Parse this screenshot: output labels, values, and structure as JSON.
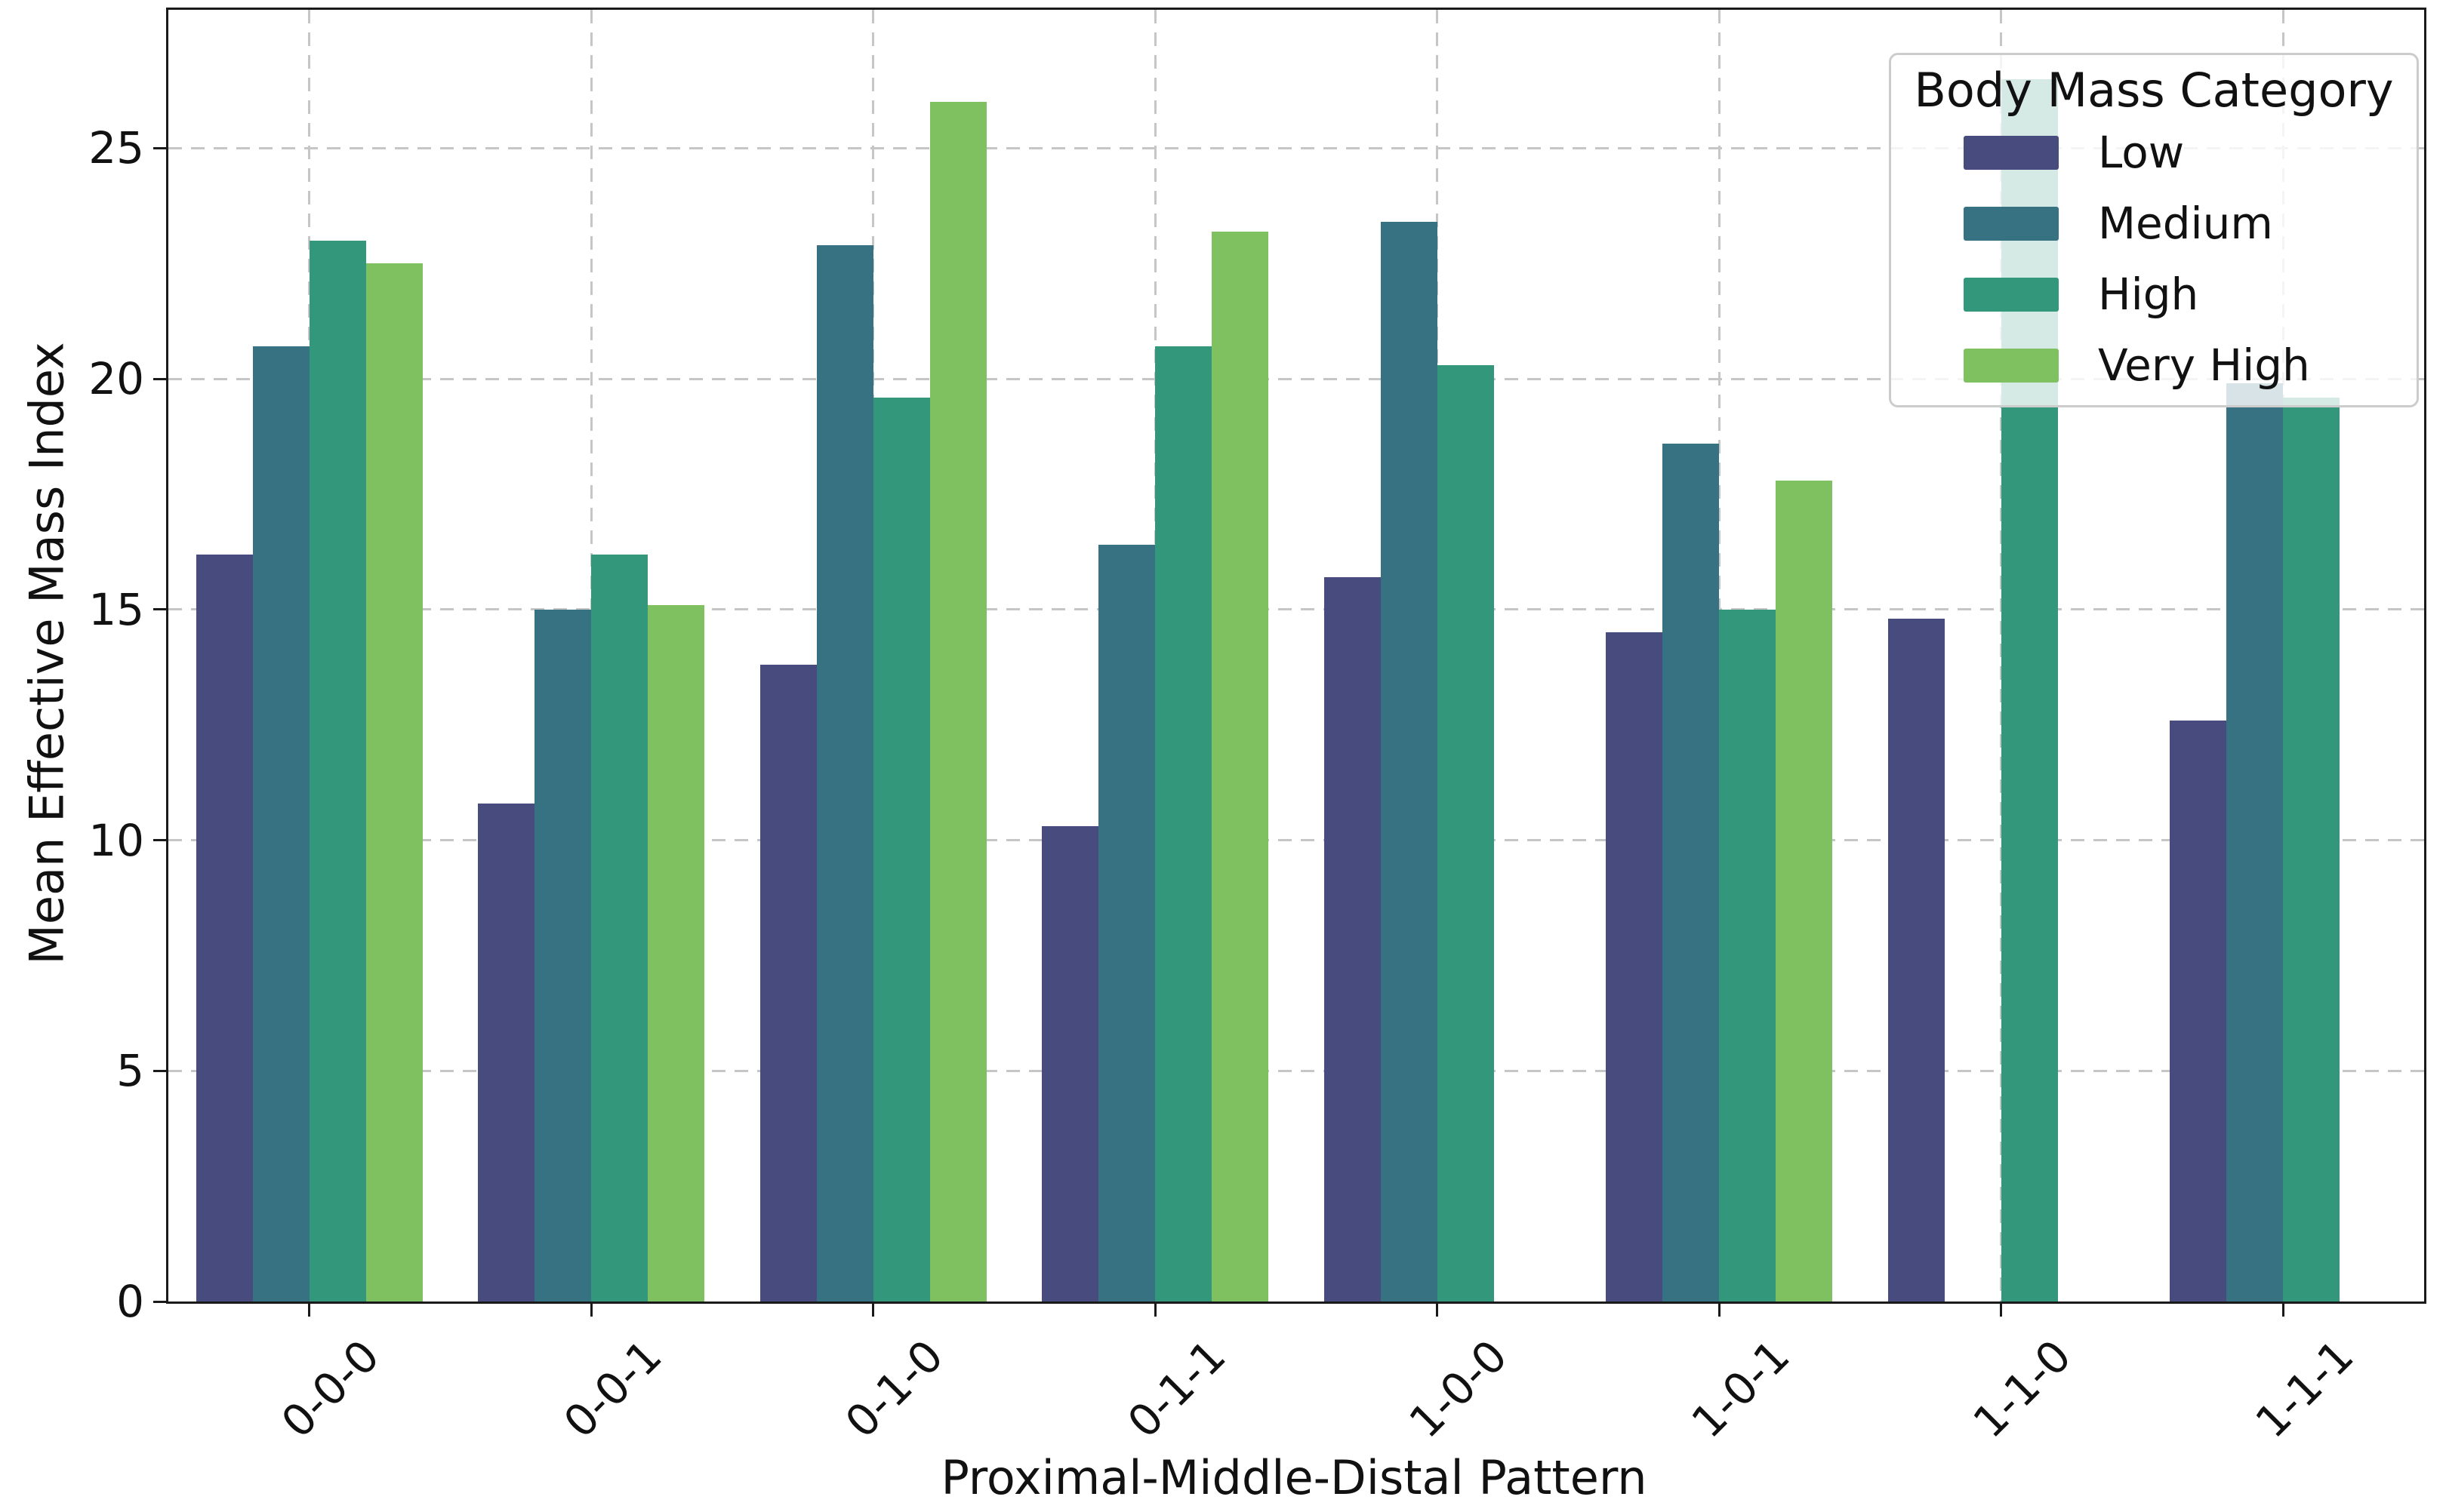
{
  "chart_data": {
    "type": "bar",
    "title": "",
    "xlabel": "Proximal-Middle-Distal Pattern",
    "ylabel": "Mean Effective Mass Index",
    "legend_title": "Body Mass Category",
    "legend_position": "upper right",
    "grid": "both, dashed",
    "background_color": "#ffffff",
    "grid_color": "#c6c6c6",
    "categories": [
      "0-0-0",
      "0-0-1",
      "0-1-0",
      "0-1-1",
      "1-0-0",
      "1-0-1",
      "1-1-0",
      "1-1-1"
    ],
    "series": [
      {
        "name": "Low",
        "color": "#484b7e",
        "values": [
          16.2,
          10.8,
          13.8,
          10.3,
          15.7,
          14.5,
          14.8,
          12.6
        ]
      },
      {
        "name": "Medium",
        "color": "#377282",
        "values": [
          20.7,
          15.0,
          22.9,
          16.4,
          23.4,
          18.6,
          null,
          19.9
        ]
      },
      {
        "name": "High",
        "color": "#33977c",
        "values": [
          23.0,
          16.2,
          19.6,
          20.7,
          20.3,
          15.0,
          26.5,
          19.6
        ]
      },
      {
        "name": "Very High",
        "color": "#7fc161",
        "values": [
          22.5,
          15.1,
          26.0,
          23.2,
          null,
          17.8,
          null,
          null
        ]
      }
    ],
    "ylim": [
      0,
      28
    ],
    "yticks": [
      0,
      5,
      10,
      15,
      20,
      25
    ]
  }
}
